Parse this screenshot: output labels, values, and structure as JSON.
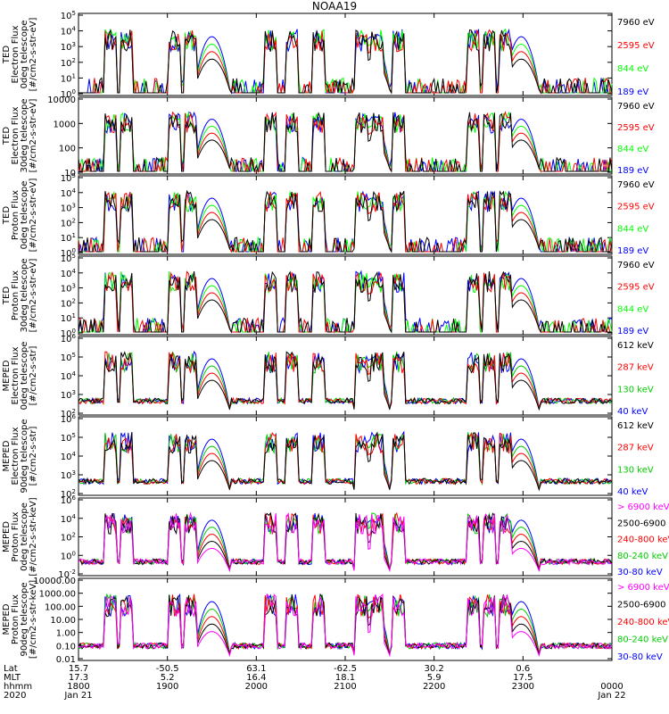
{
  "title": "NOAA19",
  "panels": [
    {
      "ylabel": [
        "TED",
        "Electron Flux",
        "0deg telescope",
        "[#/cm2-s-str-eV]"
      ],
      "yticks": [
        "10^0",
        "10^1",
        "10^2",
        "10^3",
        "10^4",
        "10^5"
      ],
      "legend": [
        {
          "label": "7960 eV",
          "color": "#000000"
        },
        {
          "label": "2595 eV",
          "color": "#ff0000"
        },
        {
          "label": "844 eV",
          "color": "#00ff00"
        },
        {
          "label": "189 eV",
          "color": "#0000ff"
        }
      ]
    },
    {
      "ylabel": [
        "TED",
        "Electron Flux",
        "30deg telescope",
        "[#/cm2-s-str-eV]"
      ],
      "yticks": [
        "10",
        "100",
        "1000",
        "10000"
      ],
      "legend": [
        {
          "label": "7960 eV",
          "color": "#000000"
        },
        {
          "label": "2595 eV",
          "color": "#ff0000"
        },
        {
          "label": "844 eV",
          "color": "#00ff00"
        },
        {
          "label": "189 eV",
          "color": "#0000ff"
        }
      ]
    },
    {
      "ylabel": [
        "TED",
        "Proton Flux",
        "0deg telescope",
        "[#/cm2-s-str-eV]"
      ],
      "yticks": [
        "10^0",
        "10^1",
        "10^2",
        "10^3",
        "10^4",
        "10^5"
      ],
      "legend": [
        {
          "label": "7960 eV",
          "color": "#000000"
        },
        {
          "label": "2595 eV",
          "color": "#ff0000"
        },
        {
          "label": "844 eV",
          "color": "#00ff00"
        },
        {
          "label": "189 eV",
          "color": "#0000ff"
        }
      ]
    },
    {
      "ylabel": [
        "TED",
        "Proton Flux",
        "30deg telescope",
        "[#/cm2-s-str-eV]"
      ],
      "yticks": [
        "10^0",
        "10^1",
        "10^2",
        "10^3",
        "10^4",
        "10^5"
      ],
      "legend": [
        {
          "label": "7960 eV",
          "color": "#000000"
        },
        {
          "label": "2595 eV",
          "color": "#ff0000"
        },
        {
          "label": "844 eV",
          "color": "#00ff00"
        },
        {
          "label": "189 eV",
          "color": "#0000ff"
        }
      ]
    },
    {
      "ylabel": [
        "MEPED",
        "Electron Flux",
        "0deg telescope",
        "[#/cm2-s-str]"
      ],
      "yticks": [
        "10^2",
        "10^3",
        "10^4",
        "10^5",
        "10^6"
      ],
      "legend": [
        {
          "label": "612 keV",
          "color": "#000000"
        },
        {
          "label": "287 keV",
          "color": "#ff0000"
        },
        {
          "label": "130 keV",
          "color": "#00cc00"
        },
        {
          "label": "40 keV",
          "color": "#0000ff"
        }
      ]
    },
    {
      "ylabel": [
        "MEPED",
        "Electron Flux",
        "90deg telescope",
        "[#/cm2-s-str]"
      ],
      "yticks": [
        "10^2",
        "10^3",
        "10^4",
        "10^5",
        "10^6"
      ],
      "legend": [
        {
          "label": "612 keV",
          "color": "#000000"
        },
        {
          "label": "287 keV",
          "color": "#ff0000"
        },
        {
          "label": "130 keV",
          "color": "#00cc00"
        },
        {
          "label": "40 keV",
          "color": "#0000ff"
        }
      ]
    },
    {
      "ylabel": [
        "MEPED",
        "Proton Flux",
        "0deg telescope",
        "[#/cm2-s-str-keV]"
      ],
      "yticks": [
        "10^-2",
        "10^0",
        "10^2",
        "10^4",
        "10^6"
      ],
      "legend": [
        {
          "label": "> 6900 keV",
          "color": "#ff00ff"
        },
        {
          "label": "2500-6900",
          "color": "#000000"
        },
        {
          "label": "240-800 keV",
          "color": "#ff0000"
        },
        {
          "label": "80-240 keV",
          "color": "#00cc00"
        },
        {
          "label": "30-80 keV",
          "color": "#0000ff"
        }
      ]
    },
    {
      "ylabel": [
        "MEPED",
        "Proton Flux",
        "90deg telescope",
        "[#/cm2-s-str-keV]"
      ],
      "yticks": [
        "0.01",
        "0.10",
        "1.00",
        "10.00",
        "100.00",
        "1000.00",
        "10000.00"
      ],
      "legend": [
        {
          "label": "> 6900 keV",
          "color": "#ff00ff"
        },
        {
          "label": "2500-6900",
          "color": "#000000"
        },
        {
          "label": "240-800 keV",
          "color": "#ff0000"
        },
        {
          "label": "80-240 keV",
          "color": "#00cc00"
        },
        {
          "label": "30-80 keV",
          "color": "#0000ff"
        }
      ]
    }
  ],
  "ephemeris": {
    "row_labels": [
      "Lat",
      "MLT",
      "hhmm",
      "2020"
    ],
    "columns": [
      {
        "lat": "15.7",
        "mlt": "17.3",
        "hhmm": "1800",
        "date": "Jan 21"
      },
      {
        "lat": "-50.5",
        "mlt": "5.2",
        "hhmm": "1900",
        "date": ""
      },
      {
        "lat": "63.1",
        "mlt": "16.4",
        "hhmm": "2000",
        "date": ""
      },
      {
        "lat": "-62.5",
        "mlt": "18.1",
        "hhmm": "2100",
        "date": ""
      },
      {
        "lat": "30.2",
        "mlt": "5.9",
        "hhmm": "2200",
        "date": ""
      },
      {
        "lat": "0.6",
        "mlt": "17.5",
        "hhmm": "2300",
        "date": ""
      },
      {
        "lat": "",
        "mlt": "",
        "hhmm": "0000",
        "date": "Jan 22"
      }
    ]
  },
  "chart_data": {
    "type": "line",
    "title": "NOAA19",
    "x_range": [
      "1800",
      "0000"
    ],
    "x_ticks": [
      "1800",
      "1900",
      "2000",
      "2100",
      "2200",
      "2300",
      "0000"
    ],
    "y_scale": "log",
    "grid": false,
    "legend_placement": "right"
  }
}
